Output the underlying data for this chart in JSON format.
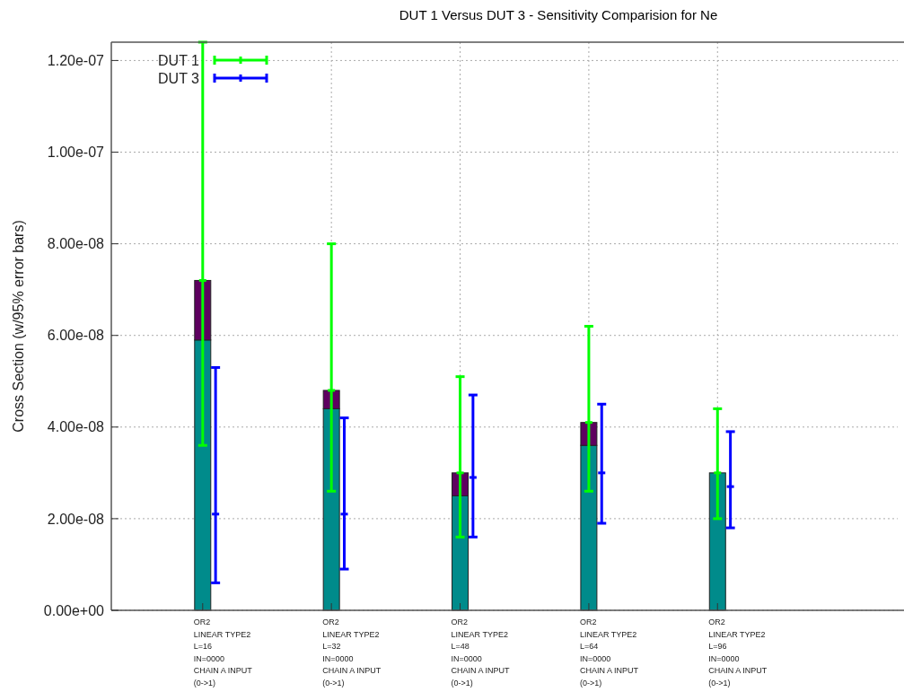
{
  "chart_data": {
    "type": "bar",
    "title": "DUT 1 Versus DUT 3 - Sensitivity Comparision for Ne",
    "ylabel": "Cross Section (w/95% error bars)",
    "categories": [
      "OR2\nLINEAR TYPE2\nL=16\nIN=0000\nCHAIN A INPUT\n(0->1)",
      "OR2\nLINEAR TYPE2\nL=32\nIN=0000\nCHAIN A INPUT\n(0->1)",
      "OR2\nLINEAR TYPE2\nL=48\nIN=0000\nCHAIN A INPUT\n(0->1)",
      "OR2\nLINEAR TYPE2\nL=64\nIN=0000\nCHAIN A INPUT\n(0->1)",
      "OR2\nLINEAR TYPE2\nL=96\nIN=0000\nCHAIN A INPUT\n(0->1)"
    ],
    "stacked": true,
    "series": [
      {
        "color": "#008b8b",
        "values": [
          5.9e-08,
          4.4e-08,
          2.5e-08,
          3.6e-08,
          3e-08
        ]
      },
      {
        "color": "#5e0060",
        "values": [
          1.3e-08,
          4e-09,
          5e-09,
          5e-09,
          null
        ]
      },
      {
        "type": "scatter",
        "name": "DUT 1",
        "color": "#00ff00",
        "values": [
          7.2e-08,
          4.8e-08,
          3e-08,
          4.1e-08,
          3e-08
        ],
        "errors": [
          [
            3.6e-08,
            1.24e-07
          ],
          [
            2.6e-08,
            8e-08
          ],
          [
            1.6e-08,
            5.1e-08
          ],
          [
            2.6e-08,
            6.2e-08
          ],
          [
            2e-08,
            4.4e-08
          ]
        ]
      },
      {
        "type": "scatter",
        "name": "DUT 3",
        "color": "#0000ff",
        "values": [
          2.1e-08,
          2.1e-08,
          2.9e-08,
          3e-08,
          2.7e-08
        ],
        "errors": [
          [
            6e-09,
            5.3e-08
          ],
          [
            9e-09,
            4.2e-08
          ],
          [
            1.6e-08,
            4.7e-08
          ],
          [
            1.9e-08,
            4.5e-08
          ],
          [
            1.8e-08,
            3.9e-08
          ]
        ]
      }
    ],
    "ylim": [
      0,
      1.24e-07
    ],
    "yticks": [
      {
        "value": 0,
        "label": "0.00e+00"
      },
      {
        "value": 2e-08,
        "label": "2.00e-08"
      },
      {
        "value": 4e-08,
        "label": "4.00e-08"
      },
      {
        "value": 6e-08,
        "label": "6.00e-08"
      },
      {
        "value": 8e-08,
        "label": "8.00e-08"
      },
      {
        "value": 1e-07,
        "label": "1.00e-07"
      },
      {
        "value": 1.2e-07,
        "label": "1.20e-07"
      }
    ],
    "grid": true,
    "legend": "top left"
  }
}
